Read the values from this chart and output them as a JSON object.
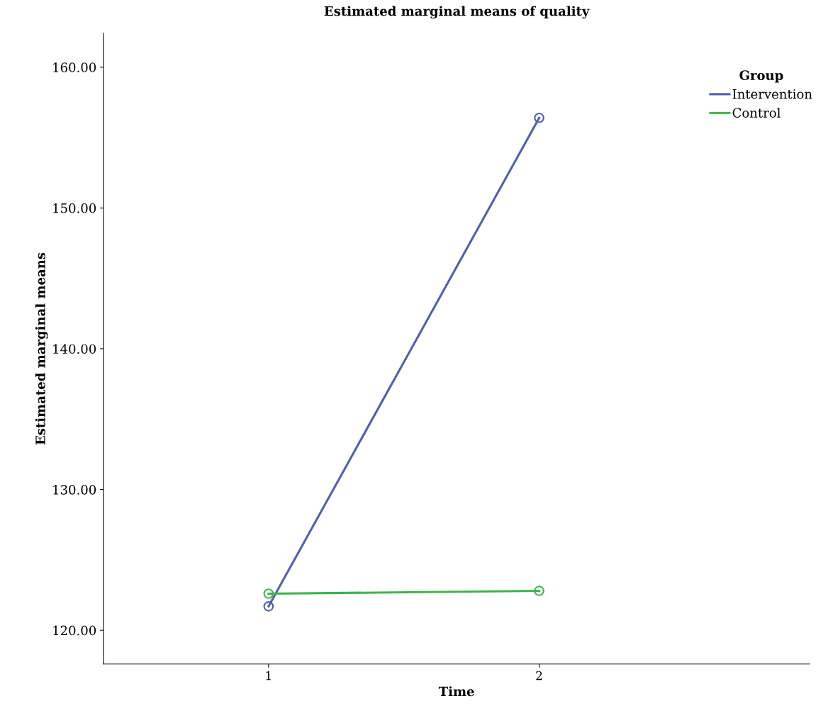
{
  "chart_data": {
    "type": "line",
    "title": "Estimated marginal means of quality",
    "xlabel": "Time",
    "ylabel": "Estimated marginal means",
    "legend_title": "Group",
    "x": [
      1,
      2
    ],
    "series": [
      {
        "name": "Intervention",
        "color": "#4f5fb0",
        "values": [
          121.7,
          156.4
        ]
      },
      {
        "name": "Control",
        "color": "#3cb54a",
        "values": [
          122.6,
          122.8
        ]
      }
    ],
    "xlim": [
      0.39,
      3.0
    ],
    "xticks": [
      1,
      2
    ],
    "ylim": [
      117.6,
      162.4
    ],
    "yticks": [
      {
        "value": 120,
        "label": "120.00"
      },
      {
        "value": 130,
        "label": "130.00"
      },
      {
        "value": 140,
        "label": "140.00"
      },
      {
        "value": 150,
        "label": "150.00"
      },
      {
        "value": 160,
        "label": "160.00"
      }
    ],
    "grid": false,
    "legend": "top right",
    "marker": "circle",
    "line_style": "solid"
  }
}
